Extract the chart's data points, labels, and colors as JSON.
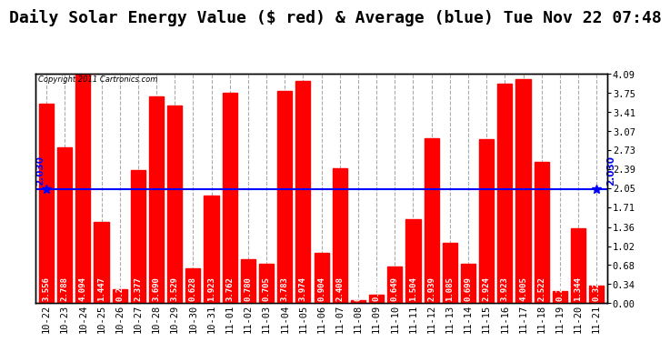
{
  "title": "Daily Solar Energy Value ($ red) & Average (blue) Tue Nov 22 07:48",
  "copyright": "Copyright 2011 Cartronics.com",
  "categories": [
    "10-22",
    "10-23",
    "10-24",
    "10-25",
    "10-26",
    "10-27",
    "10-28",
    "10-29",
    "10-30",
    "10-31",
    "11-01",
    "11-02",
    "11-03",
    "11-04",
    "11-05",
    "11-06",
    "11-07",
    "11-08",
    "11-09",
    "11-10",
    "11-11",
    "11-12",
    "11-13",
    "11-14",
    "11-15",
    "11-16",
    "11-17",
    "11-18",
    "11-19",
    "11-20",
    "11-21"
  ],
  "values": [
    3.556,
    2.788,
    4.094,
    1.447,
    0.247,
    2.377,
    3.69,
    3.529,
    0.628,
    1.923,
    3.762,
    0.78,
    0.705,
    3.783,
    3.974,
    0.904,
    2.408,
    0.053,
    0.154,
    0.649,
    1.504,
    2.939,
    1.085,
    0.699,
    2.924,
    3.923,
    4.005,
    2.522,
    0.22,
    1.344,
    0.322
  ],
  "average": 2.03,
  "bar_color": "#FF0000",
  "avg_color": "#0000FF",
  "background_color": "#FFFFFF",
  "plot_bg_color": "#FFFFFF",
  "grid_color": "#AAAAAA",
  "ylim": [
    0,
    4.09
  ],
  "yticks_right": [
    0.0,
    0.34,
    0.68,
    1.02,
    1.36,
    1.71,
    2.05,
    2.39,
    2.73,
    3.07,
    3.41,
    3.75,
    4.09
  ],
  "title_fontsize": 13,
  "tick_fontsize": 7.5,
  "bar_label_fontsize": 6.5,
  "avg_label_fontsize": 7.5
}
